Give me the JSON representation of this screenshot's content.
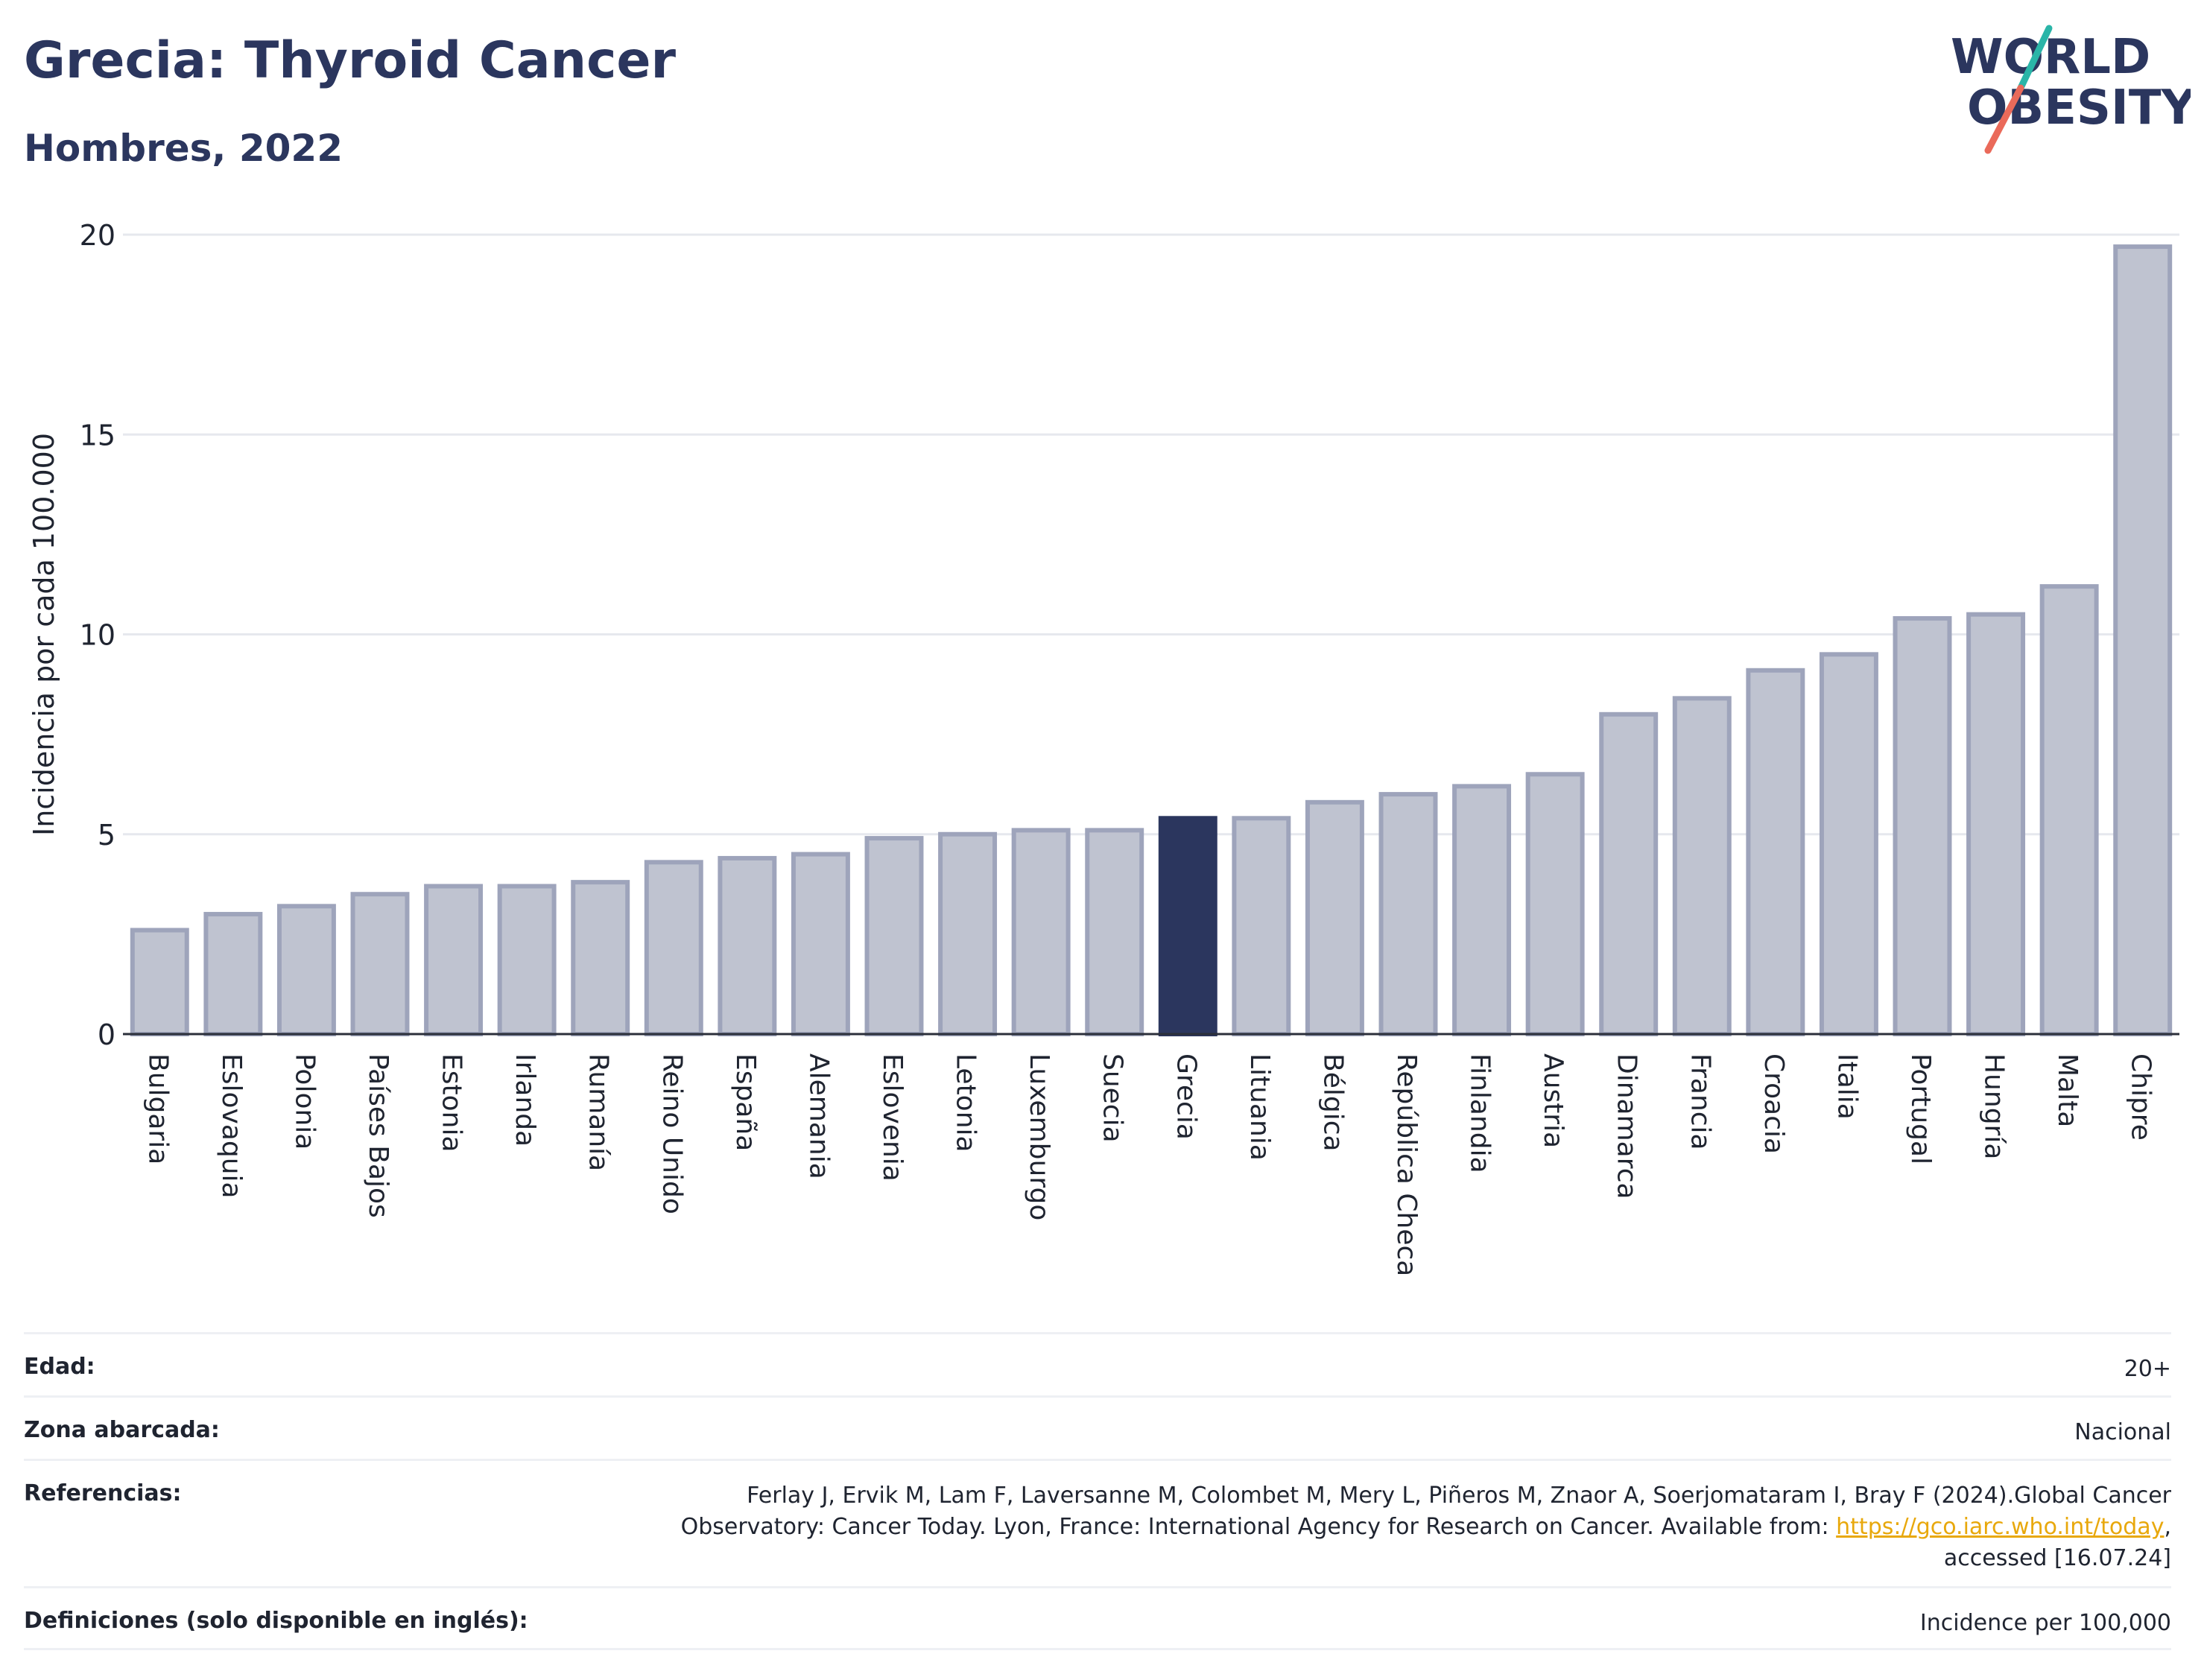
{
  "title": "Grecia: Thyroid Cancer",
  "subtitle": "Hombres, 2022",
  "logo": {
    "line1": "WORLD",
    "line2": "OBESITY",
    "colors": {
      "text": "#2b365e",
      "slash_top": "#2ab5a8",
      "slash_bottom": "#ea6a5a"
    }
  },
  "chart_data": {
    "type": "bar",
    "ylabel": "Incidencia por cada 100.000",
    "ylim": [
      0,
      20
    ],
    "yticks": [
      0,
      5,
      10,
      15,
      20
    ],
    "grid": true,
    "highlight": "Grecia",
    "colors": {
      "bar": "#bfc3d0",
      "bar_border": "#9ea4bb",
      "highlight": "#2b365e",
      "grid": "#e6e8ee",
      "axis": "#2b2f3a"
    },
    "categories": [
      "Bulgaria",
      "Eslovaquia",
      "Polonia",
      "Países Bajos",
      "Estonia",
      "Irlanda",
      "Rumanía",
      "Reino Unido",
      "España",
      "Alemania",
      "Eslovenia",
      "Letonia",
      "Luxemburgo",
      "Suecia",
      "Grecia",
      "Lituania",
      "Bélgica",
      "República Checa",
      "Finlandia",
      "Austria",
      "Dinamarca",
      "Francia",
      "Croacia",
      "Italia",
      "Portugal",
      "Hungría",
      "Malta",
      "Chipre"
    ],
    "values": [
      2.6,
      3.0,
      3.2,
      3.5,
      3.7,
      3.7,
      3.8,
      4.3,
      4.4,
      4.5,
      4.9,
      5.0,
      5.1,
      5.1,
      5.4,
      5.4,
      5.8,
      6.0,
      6.2,
      6.5,
      8.0,
      8.4,
      9.1,
      9.5,
      10.4,
      10.5,
      11.2,
      19.7
    ]
  },
  "footer": {
    "age_label": "Edad:",
    "age_value": "20+",
    "area_label": "Zona abarcada:",
    "area_value": "Nacional",
    "refs_label": "Referencias:",
    "refs_text_1": "Ferlay J, Ervik M, Lam F, Laversanne M, Colombet M, Mery L, Piñeros M, Znaor A, Soerjomataram I, Bray F (2024).Global Cancer",
    "refs_text_2": "Observatory: Cancer Today. Lyon, France: International Agency for Research on Cancer. Available from: ",
    "refs_link": "https://gco.iarc.who.int/today",
    "refs_text_3": ",",
    "refs_text_4": "accessed [16.07.24]",
    "defs_label": "Definiciones (solo disponible en inglés):",
    "defs_value": "Incidence per 100,000"
  }
}
